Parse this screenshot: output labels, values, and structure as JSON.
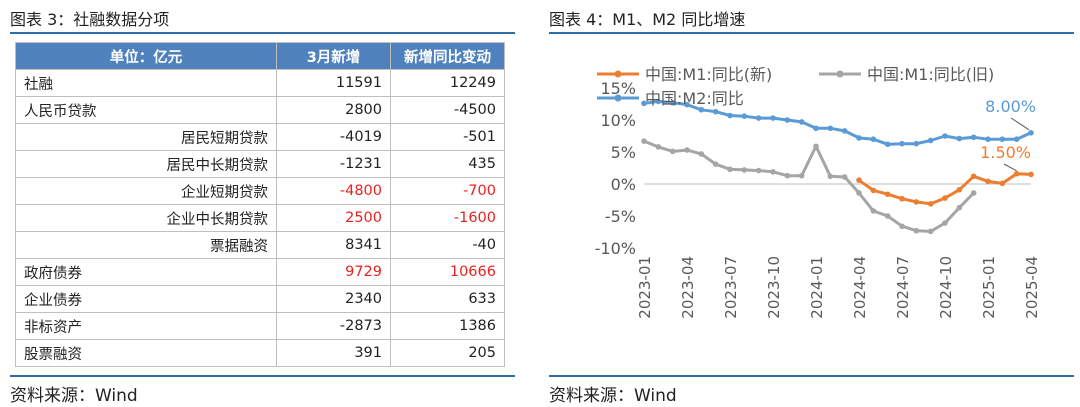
{
  "left": {
    "title": "图表 3：社融数据分项",
    "headers": [
      "单位：亿元",
      "3月新增",
      "新增同比变动"
    ],
    "rows": [
      {
        "name": "社融",
        "v1": "11591",
        "v2": "12249",
        "indent": false,
        "red": false
      },
      {
        "name": "人民币贷款",
        "v1": "2800",
        "v2": "-4500",
        "indent": false,
        "red": false
      },
      {
        "name": "居民短期贷款",
        "v1": "-4019",
        "v2": "-501",
        "indent": true,
        "red": false
      },
      {
        "name": "居民中长期贷款",
        "v1": "-1231",
        "v2": "435",
        "indent": true,
        "red": false
      },
      {
        "name": "企业短期贷款",
        "v1": "-4800",
        "v2": "-700",
        "indent": true,
        "red": true
      },
      {
        "name": "企业中长期贷款",
        "v1": "2500",
        "v2": "-1600",
        "indent": true,
        "red": true
      },
      {
        "name": "票据融资",
        "v1": "8341",
        "v2": "-40",
        "indent": true,
        "red": false
      },
      {
        "name": "政府债券",
        "v1": "9729",
        "v2": "10666",
        "indent": false,
        "red": true
      },
      {
        "name": "企业债券",
        "v1": "2340",
        "v2": "633",
        "indent": false,
        "red": false
      },
      {
        "name": "非标资产",
        "v1": "-2873",
        "v2": "1386",
        "indent": false,
        "red": false
      },
      {
        "name": "股票融资",
        "v1": "391",
        "v2": "205",
        "indent": false,
        "red": false
      }
    ],
    "source": "资料来源：Wind"
  },
  "right": {
    "title": "图表 4：M1、M2 同比增速",
    "source": "资料来源：Wind"
  },
  "chart_data": {
    "type": "line",
    "title": "",
    "xlabel": "",
    "ylabel": "",
    "ylim": [
      -10,
      15
    ],
    "yticks": [
      "15%",
      "10%",
      "5%",
      "0%",
      "-5%",
      "-10%"
    ],
    "ytick_values": [
      15,
      10,
      5,
      0,
      -5,
      -10
    ],
    "xticks": [
      "2023-01",
      "2023-04",
      "2023-07",
      "2023-10",
      "2024-01",
      "2024-04",
      "2024-07",
      "2024-10",
      "2025-01",
      "2025-04"
    ],
    "x": [
      "2023-01",
      "2023-02",
      "2023-03",
      "2023-04",
      "2023-05",
      "2023-06",
      "2023-07",
      "2023-08",
      "2023-09",
      "2023-10",
      "2023-11",
      "2023-12",
      "2024-01",
      "2024-02",
      "2024-03",
      "2024-04",
      "2024-05",
      "2024-06",
      "2024-07",
      "2024-08",
      "2024-09",
      "2024-10",
      "2024-11",
      "2024-12",
      "2025-01",
      "2025-02",
      "2025-03",
      "2025-04"
    ],
    "legend_position": "top",
    "series": [
      {
        "name": "中国:M1:同比(新)",
        "color": "#ed7d31",
        "values": [
          null,
          null,
          null,
          null,
          null,
          null,
          null,
          null,
          null,
          null,
          null,
          null,
          null,
          null,
          null,
          0.6,
          -1.0,
          -1.6,
          -2.3,
          -2.8,
          -3.1,
          -2.2,
          -0.9,
          1.2,
          0.4,
          0.1,
          1.6,
          1.5
        ]
      },
      {
        "name": "中国:M1:同比(旧)",
        "color": "#a5a5a5",
        "values": [
          6.7,
          5.8,
          5.1,
          5.3,
          4.7,
          3.1,
          2.3,
          2.2,
          2.1,
          1.9,
          1.3,
          1.3,
          5.9,
          1.2,
          1.1,
          -1.4,
          -4.2,
          -5.0,
          -6.6,
          -7.3,
          -7.4,
          -6.1,
          -3.7,
          -1.4,
          null,
          null,
          null,
          null
        ]
      },
      {
        "name": "中国:M2:同比",
        "color": "#5b9bd5",
        "values": [
          12.6,
          12.9,
          12.7,
          12.4,
          11.6,
          11.3,
          10.7,
          10.6,
          10.3,
          10.3,
          10.0,
          9.7,
          8.7,
          8.7,
          8.3,
          7.2,
          7.0,
          6.2,
          6.3,
          6.3,
          6.8,
          7.5,
          7.1,
          7.3,
          7.0,
          7.0,
          7.0,
          8.0
        ]
      }
    ],
    "annotations": [
      "8.00%",
      "1.50%"
    ]
  }
}
